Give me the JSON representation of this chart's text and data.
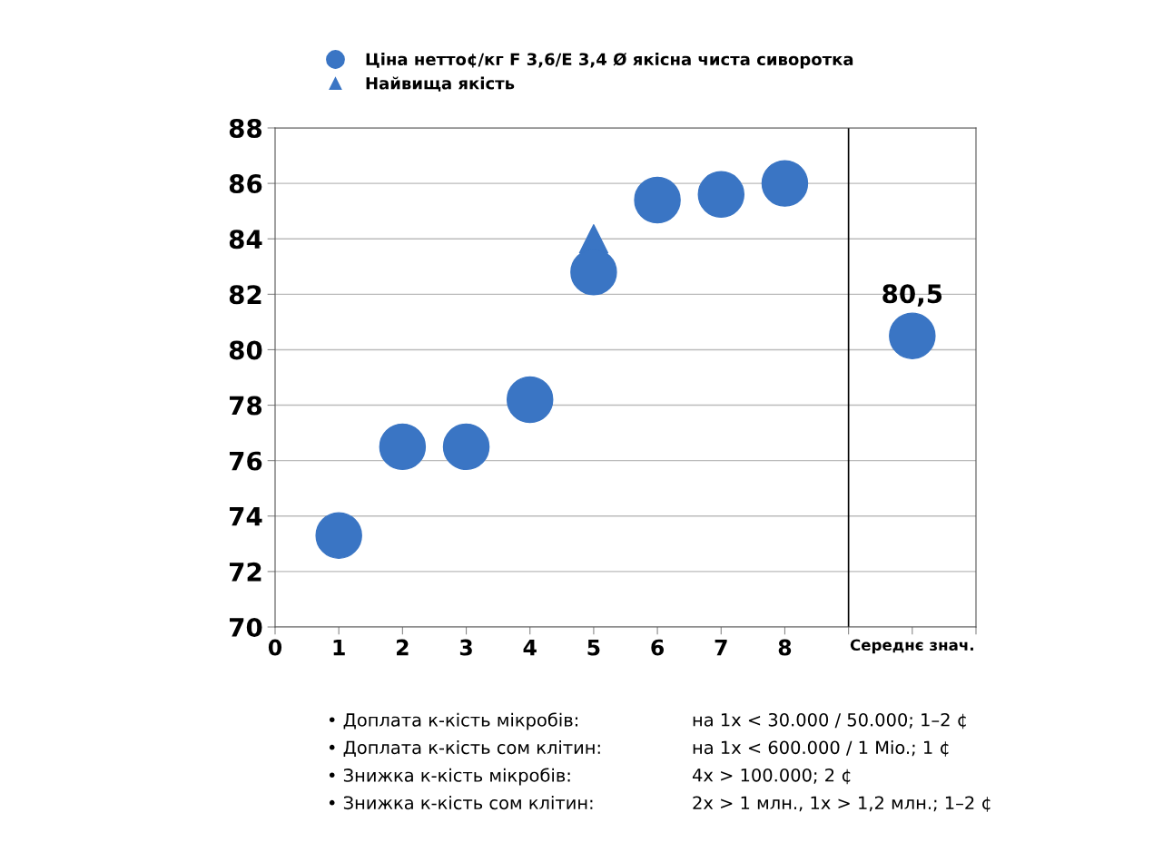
{
  "chart_data": {
    "type": "scatter",
    "series": [
      {
        "name": "Ціна нетто¢/кг F 3,6/E 3,4 Ø якісна чиста сиворотка",
        "color": "#3a75c4",
        "marker": "circle",
        "x": [
          1,
          2,
          3,
          4,
          5,
          6,
          7,
          8,
          10
        ],
        "values": [
          73.3,
          76.5,
          76.5,
          78.2,
          82.8,
          85.4,
          85.6,
          86.0,
          80.5
        ],
        "value_labels": [
          null,
          null,
          null,
          null,
          null,
          null,
          null,
          null,
          "80,5"
        ]
      },
      {
        "name": "Найвища якість",
        "color": "#3a75c4",
        "marker": "triangle",
        "x": [
          5
        ],
        "values": [
          84.0
        ]
      }
    ],
    "xlim": [
      0,
      11
    ],
    "ylim": [
      70,
      88
    ],
    "xticks": [
      0,
      1,
      2,
      3,
      4,
      5,
      6,
      7,
      8,
      {
        "value": 9,
        "label": null
      },
      {
        "value": 10,
        "label": "Середнє знач."
      },
      {
        "value": 11,
        "label": null
      }
    ],
    "yticks": [
      70,
      72,
      74,
      76,
      78,
      80,
      82,
      84,
      86,
      88
    ],
    "ref_lines": [
      {
        "axis": "x",
        "value": 9,
        "label": null,
        "color": "#000000"
      }
    ],
    "grid": "y",
    "legend": "top",
    "annotations": [
      "• Доплата к-кість мікробів:",
      "на 1x < 30.000 / 50.000; 1–2 ¢",
      "• Доплата к-кість сом клітин:",
      "на 1x < 600.000 / 1 Mio.; 1 ¢",
      "• Знижка к-кість мікробів:",
      "4x > 100.000; 2 ¢",
      "• Знижка к-кість сом клітин:",
      "2x > 1 млн., 1x > 1,2 млн.; 1–2 ¢"
    ]
  }
}
